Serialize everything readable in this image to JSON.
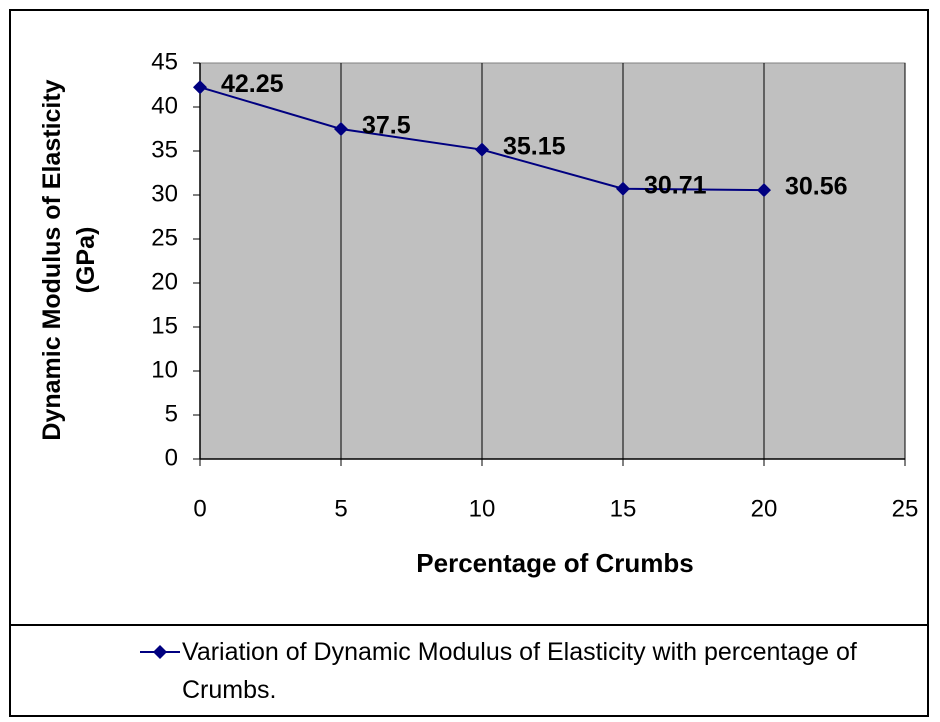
{
  "chart_data": {
    "type": "line",
    "x": [
      0,
      5,
      10,
      15,
      20
    ],
    "series": [
      {
        "name": "Variation of Dynamic Modulus of Elasticity with percentage of Crumbs.",
        "color": "#000080",
        "values": [
          42.25,
          37.5,
          35.15,
          30.71,
          30.56
        ]
      }
    ],
    "xlim": [
      0,
      25
    ],
    "xticks": [
      0,
      5,
      10,
      15,
      20,
      25
    ],
    "ylim": [
      0,
      45
    ],
    "yticks": [
      0,
      5,
      10,
      15,
      20,
      25,
      30,
      35,
      40,
      45
    ],
    "xlabel": "Percentage of Crumbs",
    "ylabel": "Dynamic Modulus of Elasticity (GPa)",
    "grid": "x",
    "data_labels": true,
    "plot_background": "#c0c0c0",
    "legend": "bottom"
  }
}
